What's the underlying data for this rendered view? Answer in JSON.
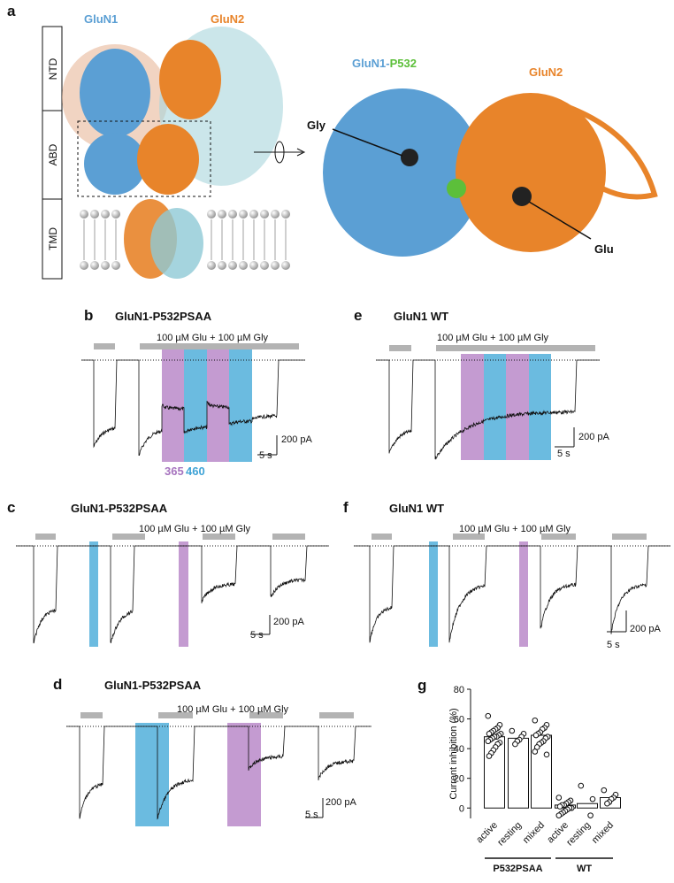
{
  "panel_a": {
    "label": "a",
    "domains": [
      "NTD",
      "ABD",
      "TMD"
    ],
    "subunits": [
      "GluN1",
      "GluN2"
    ],
    "zoom_title": [
      "GluN1-",
      "P532"
    ],
    "zoom_subunit": "GluN2",
    "ligands": [
      "Gly",
      "Glu"
    ]
  },
  "panel_b": {
    "label": "b",
    "title": "GluN1-P532PSAA",
    "application": "100 µM Glu + 100 µM Gly",
    "scale_current": "200 pA",
    "scale_time": "5 s",
    "wavelengths": [
      "365",
      "460"
    ]
  },
  "panel_c": {
    "label": "c",
    "title": "GluN1-P532PSAA",
    "application": "100 µM Glu + 100 µM Gly",
    "scale_current": "200 pA",
    "scale_time": "5 s"
  },
  "panel_d": {
    "label": "d",
    "title": "GluN1-P532PSAA",
    "application": "100 µM Glu + 100 µM Gly",
    "scale_current": "200 pA",
    "scale_time": "5 s"
  },
  "panel_e": {
    "label": "e",
    "title": "GluN1 WT",
    "application": "100 µM Glu + 100 µM Gly",
    "scale_current": "200 pA",
    "scale_time": "5 s"
  },
  "panel_f": {
    "label": "f",
    "title": "GluN1 WT",
    "application": "100 µM Glu + 100 µM Gly",
    "scale_current": "200 pA",
    "scale_time": "5 s"
  },
  "chart_data": {
    "type": "bar",
    "label": "g",
    "y_label": "Current inhibition (%)",
    "categories": [
      "active",
      "resting",
      "mixed",
      "active",
      "resting",
      "mixed"
    ],
    "groups": [
      "P532PSAA",
      "WT"
    ],
    "values": [
      48,
      47,
      49,
      2,
      3,
      7
    ],
    "points": [
      [
        62,
        56,
        54,
        53,
        52,
        51,
        50,
        50,
        49,
        48,
        48,
        47,
        46,
        45,
        44,
        43,
        41,
        39,
        37,
        35
      ],
      [
        52,
        50,
        48,
        46,
        45,
        43
      ],
      [
        59,
        56,
        54,
        53,
        51,
        50,
        49,
        48,
        47,
        45,
        44,
        43,
        41,
        38,
        36
      ],
      [
        7,
        5,
        4,
        3,
        2,
        2,
        1,
        0,
        0,
        -1,
        -2,
        -3,
        -4,
        -5
      ],
      [
        15,
        6,
        -5
      ],
      [
        12,
        9,
        7,
        6,
        4,
        3
      ]
    ],
    "ylim": [
      -7,
      80
    ],
    "yticks": [
      0,
      20,
      40,
      60,
      80
    ]
  }
}
